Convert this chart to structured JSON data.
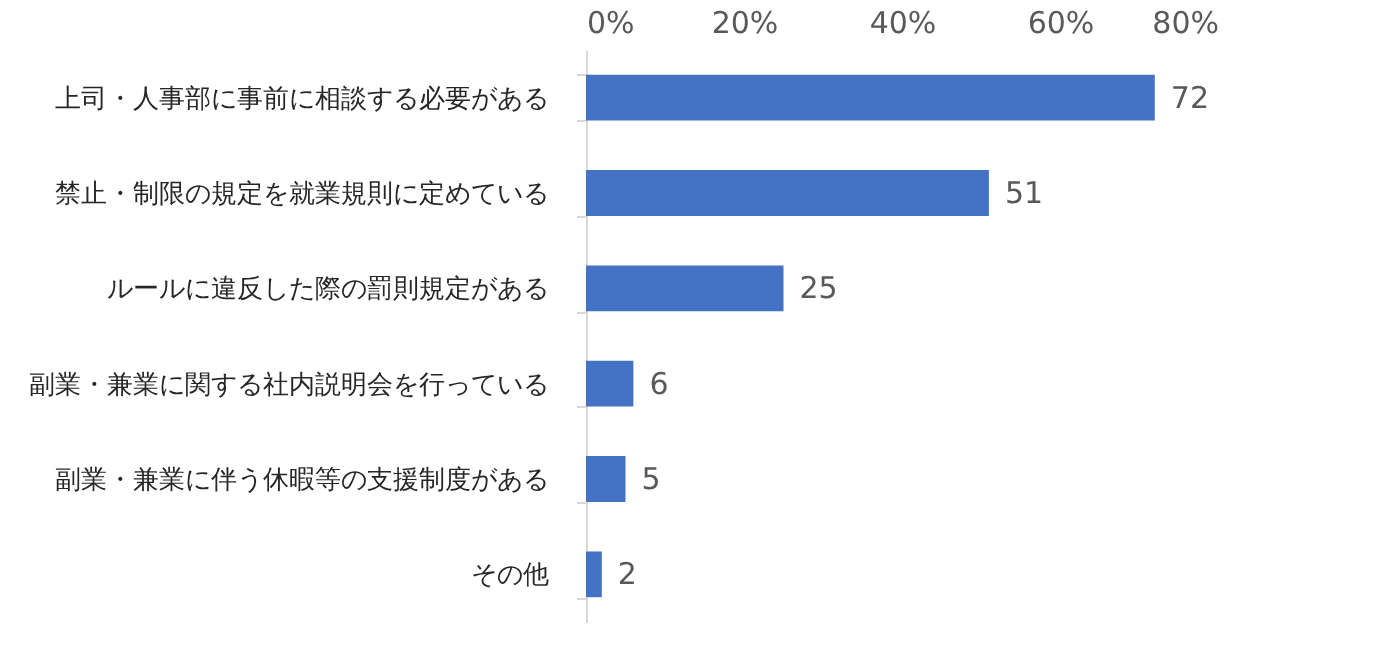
{
  "chart_data": {
    "type": "bar",
    "orientation": "horizontal",
    "categories": [
      "上司・人事部に事前に相談する必要がある",
      "禁止・制限の規定を就業規則に定めている",
      "ルールに違反した際の罰則規定がある",
      "副業・兼業に関する社内説明会を行っている",
      "副業・兼業に伴う休暇等の支援制度がある",
      "その他"
    ],
    "values": [
      72,
      51,
      25,
      6,
      5,
      2
    ],
    "color": "#4472c4",
    "xlim": [
      0,
      80
    ],
    "xticks": [
      {
        "value": 0,
        "label": "0%"
      },
      {
        "value": 20,
        "label": "20%"
      },
      {
        "value": 40,
        "label": "40%"
      },
      {
        "value": 60,
        "label": "60%"
      },
      {
        "value": 80,
        "label": "80%"
      }
    ],
    "data_labels": true
  }
}
